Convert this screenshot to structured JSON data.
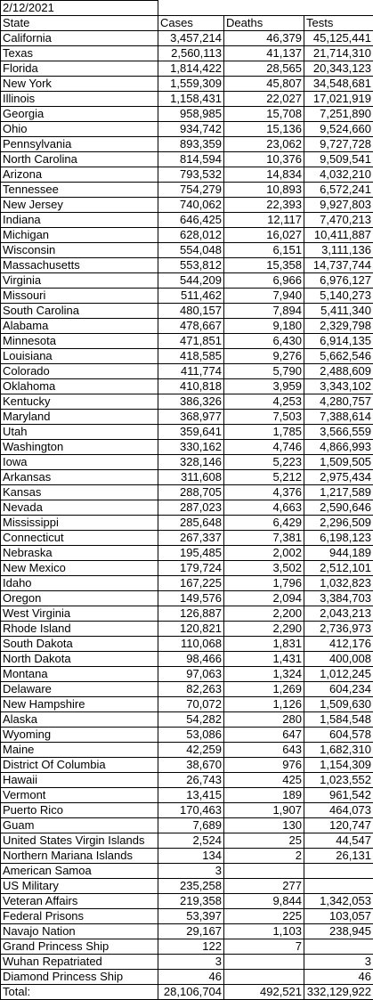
{
  "date": "2/12/2021",
  "header": [
    "State",
    "Cases",
    "Deaths",
    "Tests"
  ],
  "rows": [
    [
      "California",
      "3,457,214",
      "46,379",
      "45,125,441"
    ],
    [
      "Texas",
      "2,560,113",
      "41,137",
      "21,714,310"
    ],
    [
      "Florida",
      "1,814,422",
      "28,565",
      "20,343,123"
    ],
    [
      "New York",
      "1,559,309",
      "45,807",
      "34,548,681"
    ],
    [
      "Illinois",
      "1,158,431",
      "22,027",
      "17,021,919"
    ],
    [
      "Georgia",
      "958,985",
      "15,708",
      "7,251,890"
    ],
    [
      "Ohio",
      "934,742",
      "15,136",
      "9,524,660"
    ],
    [
      "Pennsylvania",
      "893,359",
      "23,062",
      "9,727,728"
    ],
    [
      "North Carolina",
      "814,594",
      "10,376",
      "9,509,541"
    ],
    [
      "Arizona",
      "793,532",
      "14,834",
      "4,032,210"
    ],
    [
      "Tennessee",
      "754,279",
      "10,893",
      "6,572,241"
    ],
    [
      "New Jersey",
      "740,062",
      "22,393",
      "9,927,803"
    ],
    [
      "Indiana",
      "646,425",
      "12,117",
      "7,470,213"
    ],
    [
      "Michigan",
      "628,012",
      "16,027",
      "10,411,887"
    ],
    [
      "Wisconsin",
      "554,048",
      "6,151",
      "3,111,136"
    ],
    [
      "Massachusetts",
      "553,812",
      "15,358",
      "14,737,744"
    ],
    [
      "Virginia",
      "544,209",
      "6,966",
      "6,976,127"
    ],
    [
      "Missouri",
      "511,462",
      "7,940",
      "5,140,273"
    ],
    [
      "South Carolina",
      "480,157",
      "7,894",
      "5,411,340"
    ],
    [
      "Alabama",
      "478,667",
      "9,180",
      "2,329,798"
    ],
    [
      "Minnesota",
      "471,851",
      "6,430",
      "6,914,135"
    ],
    [
      "Louisiana",
      "418,585",
      "9,276",
      "5,662,546"
    ],
    [
      "Colorado",
      "411,774",
      "5,790",
      "2,488,609"
    ],
    [
      "Oklahoma",
      "410,818",
      "3,959",
      "3,343,102"
    ],
    [
      "Kentucky",
      "386,326",
      "4,253",
      "4,280,757"
    ],
    [
      "Maryland",
      "368,977",
      "7,503",
      "7,388,614"
    ],
    [
      "Utah",
      "359,641",
      "1,785",
      "3,566,559"
    ],
    [
      "Washington",
      "330,162",
      "4,746",
      "4,866,993"
    ],
    [
      "Iowa",
      "328,146",
      "5,223",
      "1,509,505"
    ],
    [
      "Arkansas",
      "311,608",
      "5,212",
      "2,975,434"
    ],
    [
      "Kansas",
      "288,705",
      "4,376",
      "1,217,589"
    ],
    [
      "Nevada",
      "287,023",
      "4,663",
      "2,590,646"
    ],
    [
      "Mississippi",
      "285,648",
      "6,429",
      "2,296,509"
    ],
    [
      "Connecticut",
      "267,337",
      "7,381",
      "6,198,123"
    ],
    [
      "Nebraska",
      "195,485",
      "2,002",
      "944,189"
    ],
    [
      "New Mexico",
      "179,724",
      "3,502",
      "2,512,101"
    ],
    [
      "Idaho",
      "167,225",
      "1,796",
      "1,032,823"
    ],
    [
      "Oregon",
      "149,576",
      "2,094",
      "3,384,703"
    ],
    [
      "West Virginia",
      "126,887",
      "2,200",
      "2,043,213"
    ],
    [
      "Rhode Island",
      "120,821",
      "2,290",
      "2,736,973"
    ],
    [
      "South Dakota",
      "110,068",
      "1,831",
      "412,176"
    ],
    [
      "North Dakota",
      "98,466",
      "1,431",
      "400,008"
    ],
    [
      "Montana",
      "97,063",
      "1,324",
      "1,012,245"
    ],
    [
      "Delaware",
      "82,263",
      "1,269",
      "604,234"
    ],
    [
      "New Hampshire",
      "70,072",
      "1,126",
      "1,509,630"
    ],
    [
      "Alaska",
      "54,282",
      "280",
      "1,584,548"
    ],
    [
      "Wyoming",
      "53,086",
      "647",
      "604,578"
    ],
    [
      "Maine",
      "42,259",
      "643",
      "1,682,310"
    ],
    [
      "District Of Columbia",
      "38,670",
      "976",
      "1,154,309"
    ],
    [
      "Hawaii",
      "26,743",
      "425",
      "1,023,552"
    ],
    [
      "Vermont",
      "13,415",
      "189",
      "961,542"
    ],
    [
      "Puerto Rico",
      "170,463",
      "1,907",
      "464,073"
    ],
    [
      "Guam",
      "7,689",
      "130",
      "120,747"
    ],
    [
      "United States Virgin Islands",
      "2,524",
      "25",
      "44,547"
    ],
    [
      "Northern Mariana Islands",
      "134",
      "2",
      "26,131"
    ],
    [
      "American Samoa",
      "3",
      null,
      null
    ],
    [
      "US Military",
      "235,258",
      "277",
      null
    ],
    [
      "Veteran Affairs",
      "219,358",
      "9,844",
      "1,342,053"
    ],
    [
      "Federal Prisons",
      "53,397",
      "225",
      "103,057"
    ],
    [
      "Navajo Nation",
      "29,167",
      "1,103",
      "238,945"
    ],
    [
      "Grand Princess Ship",
      "122",
      "7",
      null
    ],
    [
      "Wuhan Repatriated",
      "3",
      null,
      "3"
    ],
    [
      "Diamond Princess Ship",
      "46",
      null,
      "46"
    ]
  ],
  "total": [
    "Total:",
    "28,106,704",
    "492,521",
    "332,129,922"
  ]
}
